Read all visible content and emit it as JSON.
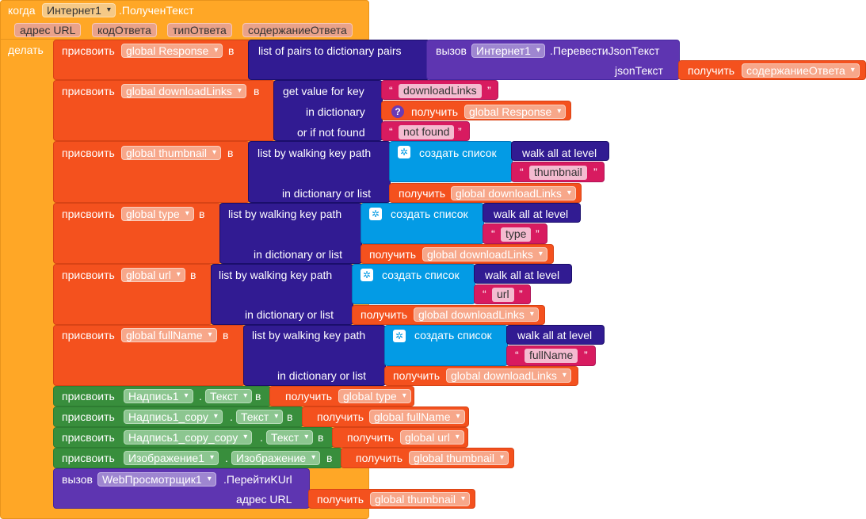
{
  "event": {
    "when": "когда",
    "component": "Интернет1",
    "event_name": ".ПолученТекст",
    "params": [
      "адрес URL",
      "кодОтвета",
      "типОтвета",
      "содержаниеОтвета"
    ],
    "do": "делать"
  },
  "kw": {
    "set": "присвоить",
    "to": "в",
    "get": "получить",
    "call": "вызов",
    "make_list": "создать список",
    "list_of_pairs": "list of pairs to dictionary  pairs",
    "get_value_for_key": "get value for key",
    "in_dictionary": "in dictionary",
    "or_if_not_found": "or if not found",
    "list_by_walking": "list by walking key path",
    "in_dict_or_list": "in dictionary or list",
    "walk_all": "walk all at level",
    "json_text": "jsonТекст",
    "dot": "."
  },
  "vars": {
    "response": "global Response",
    "download_links": "global downloadLinks",
    "thumbnail": "global thumbnail",
    "type": "global type",
    "url": "global url",
    "full_name": "global fullName",
    "content": "содержаниеОтвета"
  },
  "strings": {
    "download_links": "downloadLinks",
    "not_found": "not found",
    "thumbnail": "thumbnail",
    "type": "type",
    "url": "url",
    "full_name": "fullName"
  },
  "call_json": {
    "component": "Интернет1",
    "method": ".ПеревестиJsonТекст"
  },
  "components": {
    "label1": "Надпись1",
    "prop1": "Текст",
    "label2": "Надпись1_copy",
    "prop2": "Текст",
    "label3": "Надпись1_copy_copy",
    "prop3": "Текст",
    "image": "Изображение1",
    "prop4": "Изображение"
  },
  "call_web": {
    "component": "WebПросмотрщик1",
    "method": ".ПерейтиKUrl",
    "arg": "адрес URL"
  },
  "colors": {
    "event": "#FFA726",
    "variable": "#F4511E",
    "component": "#388E3C",
    "call": "#5E35B1",
    "list": "#311B92",
    "text": "#D81B60"
  }
}
